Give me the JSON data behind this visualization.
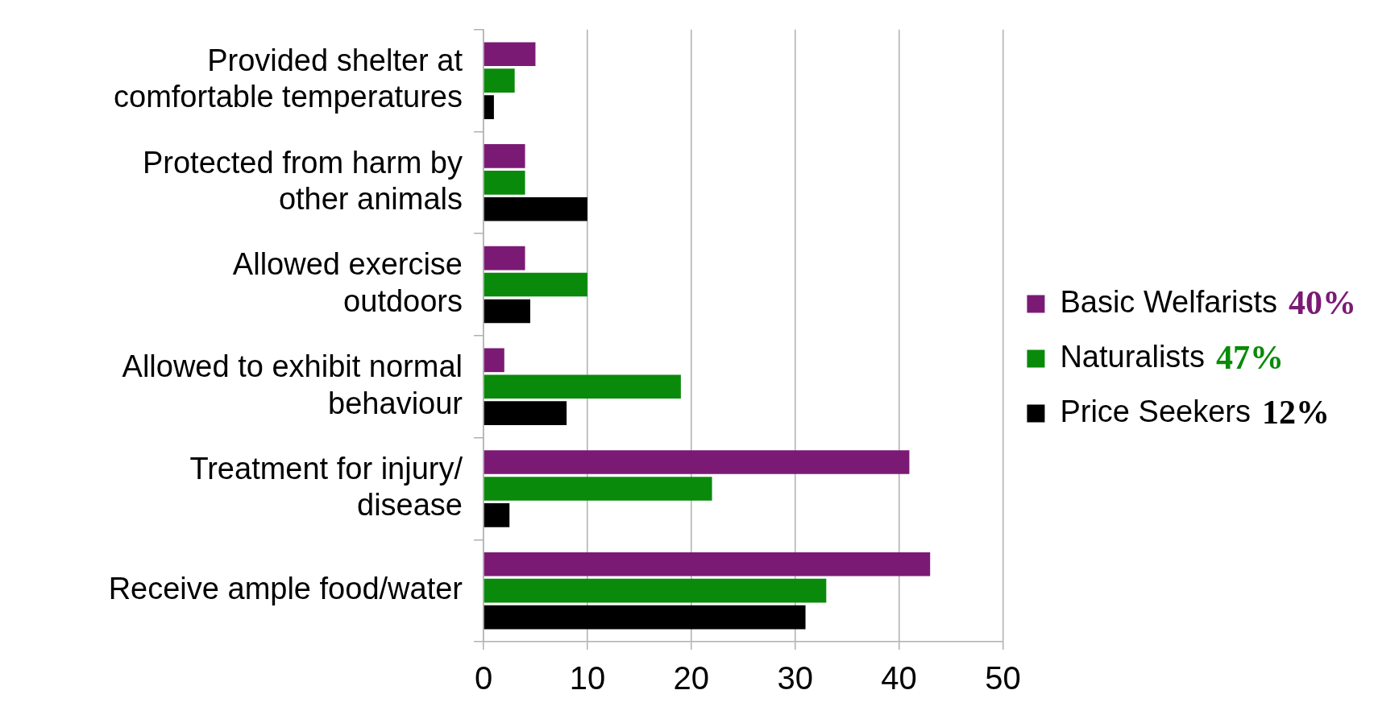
{
  "chart_data": {
    "type": "bar",
    "orientation": "horizontal",
    "categories": [
      "Provided shelter at\ncomfortable temperatures",
      "Protected from harm by\nother animals",
      "Allowed exercise\noutdoors",
      "Allowed to exhibit normal\nbehaviour",
      "Treatment for injury/\ndisease",
      "Receive ample food/water"
    ],
    "series": [
      {
        "name": "Basic Welfarists",
        "color": "#7b1a74",
        "values": [
          5,
          4,
          4,
          2,
          41,
          43
        ]
      },
      {
        "name": "Naturalists",
        "color": "#0a8a0a",
        "values": [
          3,
          4,
          10,
          19,
          22,
          33
        ]
      },
      {
        "name": "Price Seekers",
        "color": "#000000",
        "values": [
          1,
          10,
          4.5,
          8,
          2.5,
          31
        ]
      }
    ],
    "xlim": [
      0,
      50
    ],
    "xticks": [
      0,
      10,
      20,
      30,
      40,
      50
    ],
    "grid": "x",
    "legend": "right",
    "annotations": [
      "40%",
      "47%",
      "12%"
    ]
  }
}
